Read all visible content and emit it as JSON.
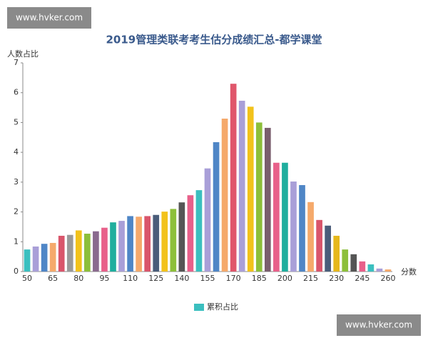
{
  "watermark_top": "www.hvker.com",
  "watermark_bottom": "www.hvker.com",
  "chart_data": {
    "type": "bar",
    "title": "2019管理类联考考生估分成绩汇总-都学课堂",
    "y_label": "人数占比",
    "x_label": "分数",
    "categories": [
      "50",
      null,
      null,
      "65",
      null,
      null,
      "80",
      null,
      null,
      "95",
      null,
      null,
      "110",
      null,
      null,
      "125",
      null,
      null,
      "140",
      null,
      null,
      "155",
      null,
      null,
      "170",
      null,
      null,
      "185",
      null,
      null,
      "200",
      null,
      null,
      "215",
      null,
      null,
      "230",
      null,
      null,
      "245",
      null,
      null,
      "260"
    ],
    "series": [
      {
        "name": "累积占比",
        "color": "#3bbfbf",
        "values": [
          0.74,
          0.84,
          0.93,
          0.96,
          1.2,
          1.23,
          1.38,
          1.27,
          1.35,
          1.47,
          1.65,
          1.7,
          1.86,
          1.84,
          1.86,
          1.9,
          2.01,
          2.1,
          2.32,
          2.56,
          2.73,
          3.46,
          4.34,
          5.13,
          6.3,
          5.73,
          5.53,
          5.0,
          4.82,
          3.65,
          3.65,
          3.02,
          2.9,
          2.33,
          1.73,
          1.54,
          1.2,
          0.74,
          0.58,
          0.34,
          0.24,
          0.1,
          0.07
        ]
      }
    ],
    "bar_colors": [
      "#3bbfbf",
      "#a99fd8",
      "#4f86c6",
      "#f5a96b",
      "#d9556b",
      "#9a9a9a",
      "#f2c21b",
      "#8dbf3a",
      "#8a6a8e",
      "#e8608a",
      "#1fae9e",
      "#a99fd8",
      "#4f86c6",
      "#f5a96b",
      "#d9556b",
      "#4a5d7a",
      "#f2c21b",
      "#8dbf3a",
      "#555555",
      "#e8608a",
      "#3bbfbf",
      "#a99fd8",
      "#4f86c6",
      "#f5a96b",
      "#e0566b",
      "#a99fd8",
      "#f2c21b",
      "#8dbf3a",
      "#7a5f6e",
      "#e8608a",
      "#1fae9e",
      "#a99fd8",
      "#4f86c6",
      "#f5a96b",
      "#d9556b",
      "#4a5d7a",
      "#e6b81b",
      "#8dbf3a",
      "#555555",
      "#e8608a",
      "#3bbfbf",
      "#a99fd8",
      "#f5a96b"
    ],
    "ylim": [
      0,
      7
    ],
    "yticks": [
      0,
      1,
      2,
      3,
      4,
      5,
      6,
      7
    ],
    "legend": "bottom"
  }
}
